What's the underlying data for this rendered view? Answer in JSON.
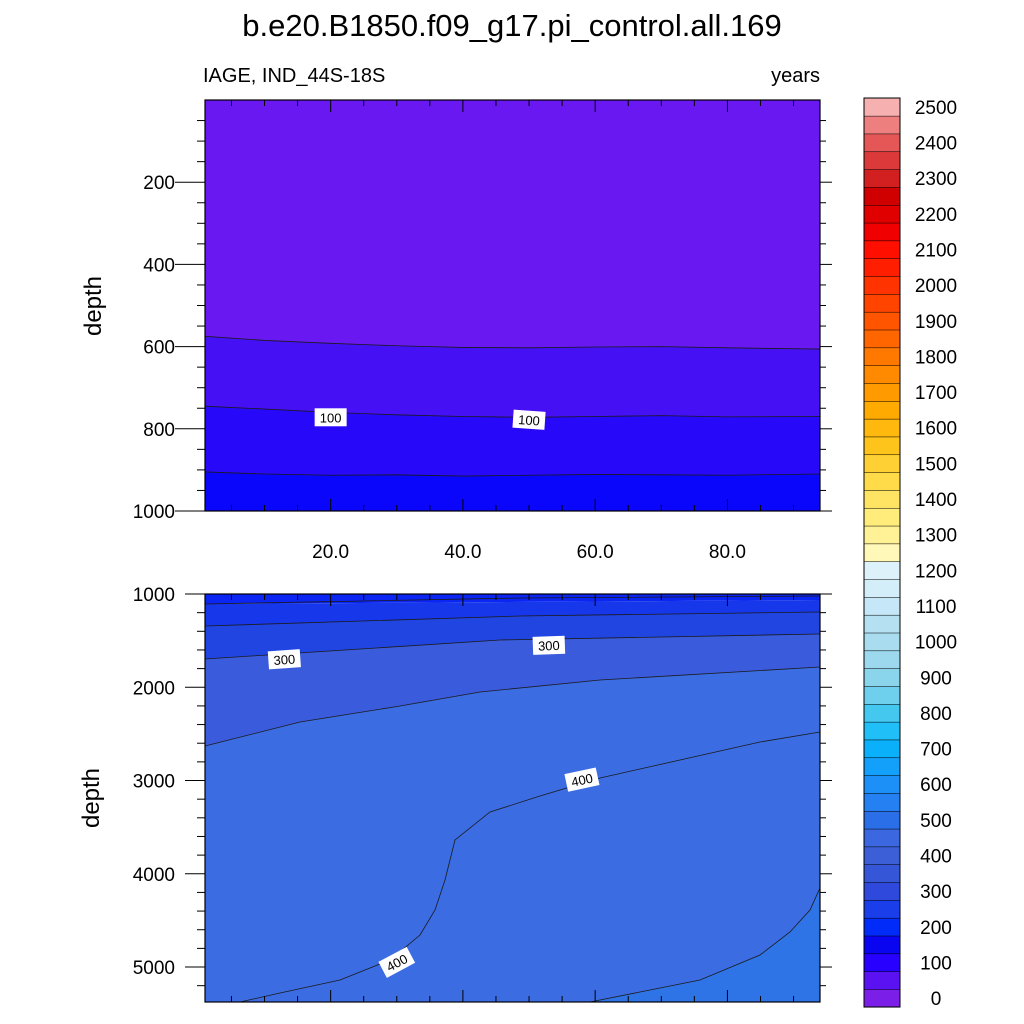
{
  "chart_data": {
    "type": "contour",
    "title": "b.e20.B1850.f09_g17.pi_control.all.169",
    "left_subtitle": "IAGE, IND_44S-18S",
    "right_subtitle": "years",
    "xlabel": "",
    "ylabel": "depth",
    "x_range": [
      1,
      94
    ],
    "x_ticks": [
      20,
      40,
      60,
      80
    ],
    "x_tick_labels": [
      "20.0",
      "40.0",
      "60.0",
      "80.0"
    ],
    "colorbar": {
      "levels": [
        0,
        50,
        100,
        150,
        200,
        250,
        300,
        350,
        400,
        450,
        500,
        550,
        600,
        650,
        700,
        750,
        800,
        850,
        900,
        950,
        1000,
        1050,
        1100,
        1150,
        1200,
        1250,
        1300,
        1350,
        1400,
        1450,
        1500,
        1550,
        1600,
        1650,
        1700,
        1750,
        1800,
        1850,
        1900,
        1950,
        2000,
        2050,
        2100,
        2150,
        2200,
        2250,
        2300,
        2350,
        2400,
        2450,
        2500
      ],
      "labels": [
        "0",
        "100",
        "200",
        "300",
        "400",
        "500",
        "600",
        "700",
        "800",
        "900",
        "1000",
        "1100",
        "1200",
        "1300",
        "1400",
        "1500",
        "1600",
        "1700",
        "1800",
        "1900",
        "2000",
        "2100",
        "2200",
        "2300",
        "2400",
        "2500"
      ],
      "colors": [
        "#7b1fe8",
        "#5a12f2",
        "#2800ff",
        "#0a05f0",
        "#002bf8",
        "#1a3fea",
        "#2f49dd",
        "#3656d8",
        "#3c5fd8",
        "#3b68e0",
        "#2a6ee8",
        "#2580f2",
        "#1d90f8",
        "#12a0fb",
        "#0bb0fb",
        "#20bff8",
        "#45c8f0",
        "#6fd0ee",
        "#8ad4ec",
        "#9dd9ee",
        "#a9dcef",
        "#b5e0f2",
        "#c6e7f7",
        "#d3edf9",
        "#ddf1fb",
        "#fff8b8",
        "#fff296",
        "#ffec7a",
        "#ffe463",
        "#ffdb4a",
        "#ffd033",
        "#ffc41c",
        "#ffb80d",
        "#ffaa00",
        "#ff9a00",
        "#ff8a00",
        "#ff7800",
        "#ff6600",
        "#ff5500",
        "#ff4400",
        "#ff3300",
        "#ff1f00",
        "#ff0f00",
        "#f00000",
        "#e00000",
        "#d00000",
        "#d21f1f",
        "#dc3a3a",
        "#e55656",
        "#ee7f7f",
        "#f6b0b0"
      ]
    },
    "panels": [
      {
        "name": "upper",
        "depth_range": [
          0,
          1000
        ],
        "y_ticks": [
          200,
          400,
          600,
          800,
          1000
        ],
        "y_tick_labels": [
          "200",
          "400",
          "600",
          "800",
          "1000"
        ],
        "bands": [
          {
            "level_range": [
              0,
              50
            ],
            "color": "#6a18f2"
          },
          {
            "level_range": [
              50,
              100
            ],
            "color": "#4510f4"
          },
          {
            "level_range": [
              100,
              150
            ],
            "color": "#2808f8"
          },
          {
            "level_range": [
              150,
              200
            ],
            "color": "#0a06fc"
          }
        ],
        "contours": [
          {
            "level": 50,
            "depth": [
              575,
              585,
              592,
              598,
              602,
              603,
              601,
              600,
              603,
              606
            ],
            "x": [
              1,
              10,
              20,
              30,
              40,
              50,
              60,
              70,
              80,
              94
            ]
          },
          {
            "level": 100,
            "depth": [
              745,
              752,
              760,
              766,
              770,
              772,
              770,
              768,
              771,
              770
            ],
            "x": [
              1,
              10,
              20,
              30,
              40,
              50,
              60,
              70,
              80,
              94
            ]
          },
          {
            "level": 150,
            "depth": [
              905,
              910,
              913,
              912,
              915,
              913,
              911,
              912,
              913,
              910
            ],
            "x": [
              1,
              10,
              20,
              30,
              40,
              50,
              60,
              70,
              80,
              94
            ]
          }
        ],
        "contour_labels": [
          {
            "text": "100",
            "x": 20,
            "depth": 772
          },
          {
            "text": "100",
            "x": 50,
            "depth": 778
          }
        ]
      },
      {
        "name": "lower",
        "depth_range": [
          1000,
          5375
        ],
        "y_ticks": [
          1000,
          2000,
          3000,
          4000,
          5000
        ],
        "y_tick_labels": [
          "1000",
          "2000",
          "3000",
          "4000",
          "5000"
        ],
        "bands": [
          {
            "level_range": [
              200,
              250
            ],
            "color": "#0b25f3"
          },
          {
            "level_range": [
              250,
              300
            ],
            "color": "#1737ea"
          },
          {
            "level_range": [
              300,
              350
            ],
            "color": "#2145e0"
          },
          {
            "level_range": [
              350,
              400
            ],
            "color": "#3a5cdc"
          },
          {
            "level_range": [
              400,
              450
            ],
            "color": "#3b6ce2"
          },
          {
            "level_range": [
              450,
              500
            ],
            "color": "#2f74e6"
          }
        ],
        "contour_labels": [
          {
            "text": "300",
            "x": 13,
            "depth": 1700
          },
          {
            "text": "300",
            "x": 53,
            "depth": 1550
          },
          {
            "text": "400",
            "x": 58,
            "depth": 2990
          },
          {
            "text": "400",
            "x": 30,
            "depth": 4950
          }
        ]
      }
    ]
  }
}
